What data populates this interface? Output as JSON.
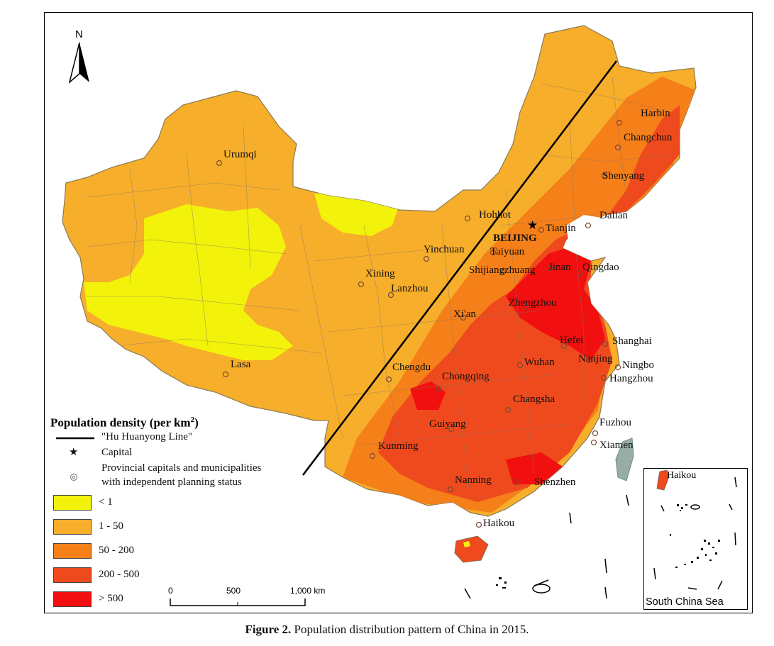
{
  "north_arrow": {
    "letter": "N"
  },
  "cities": [
    {
      "name": "Harbin"
    },
    {
      "name": "Changchun"
    },
    {
      "name": "Shenyang"
    },
    {
      "name": "Dalian"
    },
    {
      "name": "Urumqi"
    },
    {
      "name": "Hohhot"
    },
    {
      "name": "Tianjin"
    },
    {
      "name": "BEIJING",
      "capital": true
    },
    {
      "name": "Yinchuan"
    },
    {
      "name": "Taiyuan"
    },
    {
      "name": "Xining"
    },
    {
      "name": "Shijiangzhuang"
    },
    {
      "name": "Jinan"
    },
    {
      "name": "Qingdao"
    },
    {
      "name": "Lanzhou"
    },
    {
      "name": "Zhengzhou"
    },
    {
      "name": "Xi'an"
    },
    {
      "name": "Hefei"
    },
    {
      "name": "Shanghai"
    },
    {
      "name": "Nanjing"
    },
    {
      "name": "Ningbo"
    },
    {
      "name": "Lasa"
    },
    {
      "name": "Chengdu"
    },
    {
      "name": "Chongqing"
    },
    {
      "name": "Wuhan"
    },
    {
      "name": "Hangzhou"
    },
    {
      "name": "Changsha"
    },
    {
      "name": "Guiyang"
    },
    {
      "name": "Fuzhou"
    },
    {
      "name": "Kunming"
    },
    {
      "name": "Xiamen"
    },
    {
      "name": "Nanning"
    },
    {
      "name": "Shenzhen"
    },
    {
      "name": "Haikou"
    }
  ],
  "legend": {
    "title": "Population density (per km",
    "title_sup": "2",
    "title_end": ")",
    "hu_line": "\"Hu Huanyong Line\"",
    "capital": "Capital",
    "provincial_line1": "Provincial capitals and municipalities",
    "provincial_line2": "with independent planning status",
    "classes": [
      {
        "label": "< 1",
        "color": "#f2f20a"
      },
      {
        "label": "1 - 50",
        "color": "#f7ae2a"
      },
      {
        "label": "50 - 200",
        "color": "#f57f19"
      },
      {
        "label": "200 - 500",
        "color": "#ef4a1d"
      },
      {
        "label": "> 500",
        "color": "#f20f0f"
      }
    ]
  },
  "scale_bar": {
    "ticks": [
      "0",
      "500",
      "1,000 km"
    ]
  },
  "inset": {
    "label": "South China Sea",
    "city": "Haikou"
  },
  "caption": {
    "label": "Figure 2.",
    "text": " Population distribution pattern of China in 2015."
  }
}
